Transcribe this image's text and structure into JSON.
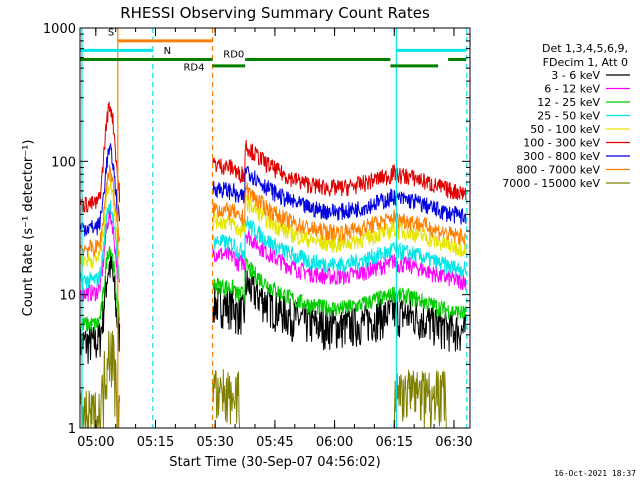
{
  "chart_data": {
    "type": "line",
    "title": "RHESSI Observing Summary Count Rates",
    "xlabel": "Start Time (30-Sep-07 04:56:02)",
    "ylabel": "Count Rate (s⁻¹ detector⁻¹)",
    "yscale": "log",
    "ylim": [
      1,
      1000
    ],
    "xlim_minutes": [
      0,
      98
    ],
    "x_tick_labels": [
      "05:00",
      "05:15",
      "05:30",
      "05:45",
      "06:00",
      "06:15",
      "06:30"
    ],
    "x_tick_minutes": [
      3.97,
      18.97,
      33.97,
      48.97,
      63.97,
      78.97,
      93.97
    ],
    "y_tick_labels": [
      "1",
      "10",
      "100",
      "1000"
    ],
    "y_tick_values": [
      1,
      10,
      100,
      1000
    ],
    "legend_header": [
      "Det 1,3,4,5,6,9,",
      "FDecim 1, Att 0"
    ],
    "legend_position": "right",
    "footer_date": "16-Oct-2021 18:37",
    "series": [
      {
        "name": "3 - 6 keV",
        "color": "#000000",
        "baseline": 5.5
      },
      {
        "name": "6 - 12 keV",
        "color": "#ff00ff",
        "baseline": 13
      },
      {
        "name": "12 - 25 keV",
        "color": "#00cc00",
        "baseline": 7.5
      },
      {
        "name": "25 - 50 keV",
        "color": "#00e5e5",
        "baseline": 16
      },
      {
        "name": "50 - 100 keV",
        "color": "#e5e500",
        "baseline": 23
      },
      {
        "name": "100 - 300 keV",
        "color": "#e00000",
        "baseline": 60
      },
      {
        "name": "300 - 800 keV",
        "color": "#0000e0",
        "baseline": 40
      },
      {
        "name": "800 - 7000 keV",
        "color": "#ff8000",
        "baseline": 28
      },
      {
        "name": "7000 - 15000 keV",
        "color": "#808000",
        "baseline": 1.5
      }
    ],
    "annotations": [
      {
        "text": "S",
        "color": "#ff8000"
      },
      {
        "text": "N",
        "color": "#00e5e5"
      },
      {
        "text": "RD0",
        "color": "#008000"
      },
      {
        "text": "RD4",
        "color": "#008000"
      }
    ],
    "flags": [
      {
        "name": "S",
        "color": "#ff8000",
        "value": 800,
        "ranges": [
          [
            9.5,
            33.3
          ]
        ]
      },
      {
        "name": "N",
        "color": "#00e5e5",
        "value": 680,
        "ranges": [
          [
            0,
            18.3
          ],
          [
            79.5,
            97
          ]
        ]
      },
      {
        "name": "RD0",
        "color": "#008000",
        "value": 580,
        "ranges": [
          [
            0,
            33.3
          ],
          [
            41.5,
            78
          ],
          [
            92.5,
            97
          ]
        ]
      },
      {
        "name": "RD4",
        "color": "#008000",
        "value": 520,
        "ranges": [
          [
            33.3,
            41.5
          ],
          [
            78,
            90
          ]
        ]
      }
    ],
    "vertical_lines": [
      {
        "minute": 0.5,
        "color": "#00e5e5",
        "style": "solid"
      },
      {
        "minute": 9.5,
        "color": "#ff8000",
        "style": "solid"
      },
      {
        "minute": 18.3,
        "color": "#00e5e5",
        "style": "dashed"
      },
      {
        "minute": 33.3,
        "color": "#ff8000",
        "style": "dashed"
      },
      {
        "minute": 79.5,
        "color": "#00e5e5",
        "style": "solid"
      },
      {
        "minute": 97.2,
        "color": "#00e5e5",
        "style": "dashed"
      }
    ],
    "data_gaps_minutes": [
      [
        10,
        33.3
      ]
    ]
  }
}
